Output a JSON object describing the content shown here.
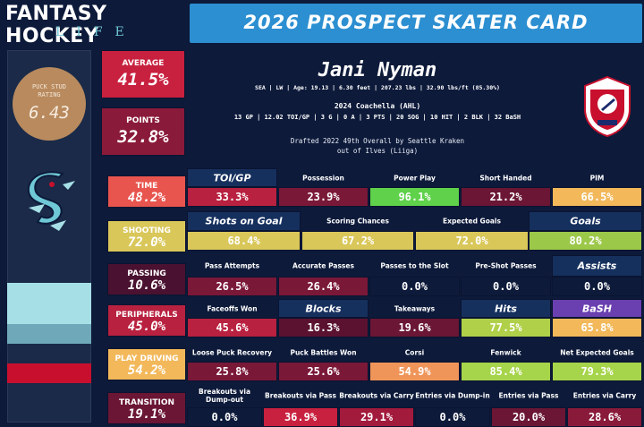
{
  "brand": {
    "line1": "FANTASY HOCKEY",
    "line2": "LIFE"
  },
  "title": "2026 PROSPECT SKATER CARD",
  "puck_stud": {
    "label": "PUCK STUD\nRATING",
    "value": "6.43",
    "color": "#b88a5e"
  },
  "average": {
    "label": "AVERAGE",
    "value": "41.5%"
  },
  "points": {
    "label": "POINTS",
    "value": "32.8%"
  },
  "player": {
    "name": "Jani Nyman",
    "info": "SEA | LW | Age: 19.13 | 6.30 feet | 207.23 lbs | 32.90 lbs/ft  (85.30%)",
    "team": "2024 Coachella (AHL)",
    "stats": "13 GP | 12.02 TOI/GP | 3 G | 0 A | 3 PTS | 20 SOG | 10 HIT | 2 BLK | 32 BaSH",
    "draft1": "Drafted 2022 49th Overall by Seattle Kraken",
    "draft2": "out of Ilves (Liiga)"
  },
  "league_logo_text": "AMERICAN HOCKEY LEAGUE",
  "categories": [
    {
      "label": "TIME",
      "value": "48.2%",
      "bg": "#e8554e",
      "fg": "#ffffff"
    },
    {
      "label": "SHOOTING",
      "value": "72.0%",
      "bg": "#d9c75a",
      "fg": "#ffffff"
    },
    {
      "label": "PASSING",
      "value": "10.6%",
      "bg": "#4a1230",
      "fg": "#ffffff"
    },
    {
      "label": "PERIPHERALS",
      "value": "45.0%",
      "bg": "#b8213f",
      "fg": "#ffffff"
    },
    {
      "label": "PLAY DRIVING",
      "value": "54.2%",
      "bg": "#f2b85a",
      "fg": "#ffffff"
    },
    {
      "label": "TRANSITION",
      "value": "19.1%",
      "bg": "#6a1634",
      "fg": "#ffffff"
    }
  ],
  "rows": [
    {
      "cells": [
        {
          "label": "TOI/GP",
          "big": true,
          "value": "33.3%",
          "bg": "#b8213f"
        },
        {
          "label": "Possession",
          "value": "23.9%",
          "bg": "#7a1838"
        },
        {
          "label": "Power Play",
          "value": "96.1%",
          "bg": "#5fd14a"
        },
        {
          "label": "Short Handed",
          "value": "21.2%",
          "bg": "#6a1634"
        },
        {
          "label": "PIM",
          "value": "66.5%",
          "bg": "#f2b85a"
        }
      ]
    },
    {
      "cells": [
        {
          "label": "Shots on Goal",
          "big": true,
          "value": "68.4%",
          "bg": "#d9c75a"
        },
        {
          "label": "Scoring Chances",
          "value": "67.2%",
          "bg": "#d9c75a"
        },
        {
          "label": "Expected Goals",
          "value": "72.0%",
          "bg": "#d9c75a"
        },
        {
          "label": "Goals",
          "big": true,
          "value": "80.2%",
          "bg": "#9cc84a"
        }
      ]
    },
    {
      "cells": [
        {
          "label": "Pass Attempts",
          "value": "26.5%",
          "bg": "#7a1838"
        },
        {
          "label": "Accurate Passes",
          "value": "26.4%",
          "bg": "#7a1838"
        },
        {
          "label": "Passes to the Slot",
          "value": "0.0%",
          "bg": "#0d1a3a"
        },
        {
          "label": "Pre-Shot Passes",
          "value": "0.0%",
          "bg": "#0d1a3a"
        },
        {
          "label": "Assists",
          "big": true,
          "value": "0.0%",
          "bg": "#0d1a3a"
        }
      ]
    },
    {
      "cells": [
        {
          "label": "Faceoffs Won",
          "value": "45.6%",
          "bg": "#b8213f"
        },
        {
          "label": "Blocks",
          "big": true,
          "value": "16.3%",
          "bg": "#5a1230"
        },
        {
          "label": "Takeaways",
          "value": "19.6%",
          "bg": "#6a1634"
        },
        {
          "label": "Hits",
          "big": true,
          "value": "77.5%",
          "bg": "#b0d04a"
        },
        {
          "label": "BaSH",
          "big": true,
          "purple": true,
          "value": "65.8%",
          "bg": "#f2b85a"
        }
      ]
    },
    {
      "cells": [
        {
          "label": "Loose Puck Recovery",
          "value": "25.8%",
          "bg": "#7a1838"
        },
        {
          "label": "Puck Battles Won",
          "value": "25.6%",
          "bg": "#7a1838"
        },
        {
          "label": "Corsi",
          "value": "54.9%",
          "bg": "#f0955a"
        },
        {
          "label": "Fenwick",
          "value": "85.4%",
          "bg": "#a6d44a"
        },
        {
          "label": "Net Expected Goals",
          "value": "79.3%",
          "bg": "#a6d44a"
        }
      ]
    },
    {
      "cells": [
        {
          "label": "Breakouts via Dump-out",
          "value": "0.0%",
          "bg": "#0d1a3a"
        },
        {
          "label": "Breakouts via Pass",
          "value": "36.9%",
          "bg": "#c8213f"
        },
        {
          "label": "Breakouts via Carry",
          "value": "29.1%",
          "bg": "#a21a3c"
        },
        {
          "label": "Entries via Dump-in",
          "value": "0.0%",
          "bg": "#0d1a3a"
        },
        {
          "label": "Entries via Pass",
          "value": "20.0%",
          "bg": "#6a1634"
        },
        {
          "label": "Entries via Carry",
          "value": "28.6%",
          "bg": "#8a1a3a"
        }
      ]
    }
  ]
}
